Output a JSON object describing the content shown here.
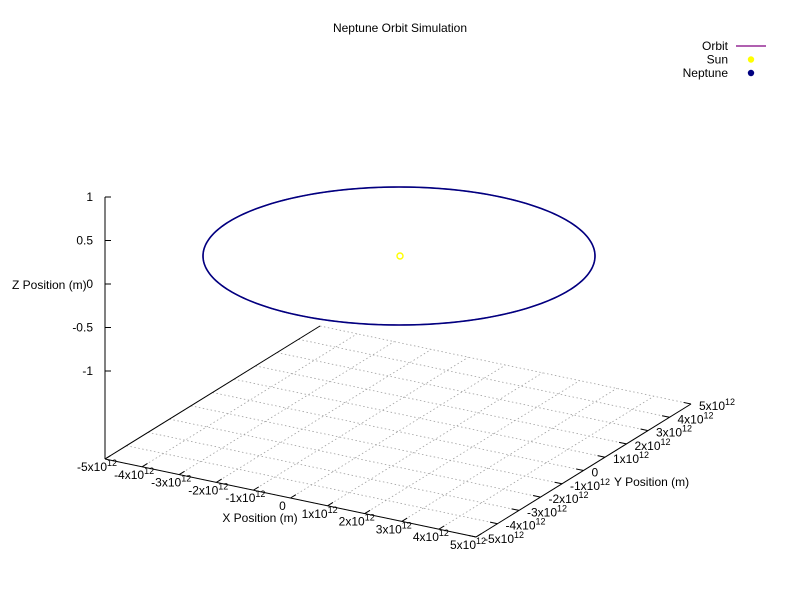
{
  "chart_data": {
    "type": "line",
    "title": "Neptune Orbit Simulation",
    "xlabel": "X Position (m)",
    "ylabel": "Y Position (m)",
    "zlabel": "Z Position (m)",
    "xlim": [
      -5000000000000.0,
      5000000000000.0
    ],
    "ylim": [
      -5000000000000.0,
      5000000000000.0
    ],
    "zlim": [
      -1,
      1
    ],
    "x_ticks": [
      {
        "base": "-5x10",
        "exp": "12"
      },
      {
        "base": "-4x10",
        "exp": "12"
      },
      {
        "base": "-3x10",
        "exp": "12"
      },
      {
        "base": "-2x10",
        "exp": "12"
      },
      {
        "base": "-1x10",
        "exp": "12"
      },
      {
        "base": "0",
        "exp": ""
      },
      {
        "base": "1x10",
        "exp": "12"
      },
      {
        "base": "2x10",
        "exp": "12"
      },
      {
        "base": "3x10",
        "exp": "12"
      },
      {
        "base": "4x10",
        "exp": "12"
      },
      {
        "base": "5x10",
        "exp": "12"
      }
    ],
    "y_ticks": [
      {
        "base": "-5x10",
        "exp": "12"
      },
      {
        "base": "-4x10",
        "exp": "12"
      },
      {
        "base": "-3x10",
        "exp": "12"
      },
      {
        "base": "-2x10",
        "exp": "12"
      },
      {
        "base": "-1x10",
        "exp": "12"
      },
      {
        "base": "0",
        "exp": ""
      },
      {
        "base": "1x10",
        "exp": "12"
      },
      {
        "base": "2x10",
        "exp": "12"
      },
      {
        "base": "3x10",
        "exp": "12"
      },
      {
        "base": "4x10",
        "exp": "12"
      },
      {
        "base": "5x10",
        "exp": "12"
      }
    ],
    "z_ticks": [
      "1",
      "0.5",
      "0",
      "-0.5",
      "-1"
    ],
    "grid": true,
    "legend_position": "top-right",
    "series": [
      {
        "name": "Orbit",
        "kind": "line",
        "color": "#800080",
        "orbit_radius": 4500000000000.0,
        "z": 0
      },
      {
        "name": "Sun",
        "kind": "point",
        "color": "#ffff00",
        "x": 0,
        "y": 0,
        "z": 0
      },
      {
        "name": "Neptune",
        "kind": "point",
        "color": "#000080",
        "orbit_radius": 4500000000000.0,
        "z": 0
      }
    ]
  }
}
